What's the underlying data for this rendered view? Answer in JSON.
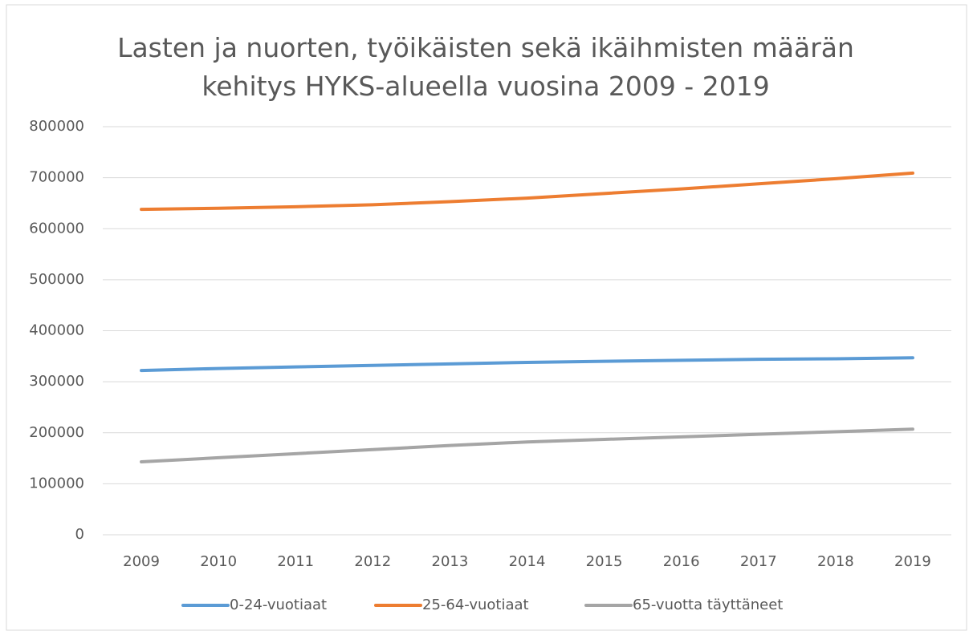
{
  "chart_data": {
    "type": "line",
    "title": "Lasten ja nuorten, työikäisten sekä ikäihmisten määrän kehitys HYKS-alueella vuosina 2009 - 2019",
    "categories": [
      "2009",
      "2010",
      "2011",
      "2012",
      "2013",
      "2014",
      "2015",
      "2016",
      "2017",
      "2018",
      "2019"
    ],
    "series": [
      {
        "name": "0-24-vuotiaat",
        "color": "#5b9bd5",
        "values": [
          322000,
          326000,
          329000,
          332000,
          335000,
          338000,
          340000,
          342000,
          344000,
          345000,
          347000
        ]
      },
      {
        "name": "25-64-vuotiaat",
        "color": "#ed7d31",
        "values": [
          638000,
          640000,
          643000,
          647000,
          653000,
          660000,
          669000,
          678000,
          688000,
          698000,
          709000
        ]
      },
      {
        "name": "65-vuotta täyttäneet",
        "color": "#a5a5a5",
        "values": [
          143000,
          151000,
          159000,
          167000,
          175000,
          182000,
          187000,
          192000,
          197000,
          202000,
          207000
        ]
      }
    ],
    "ylim": [
      0,
      800000
    ],
    "yticks": [
      0,
      100000,
      200000,
      300000,
      400000,
      500000,
      600000,
      700000,
      800000
    ],
    "grid": true,
    "legend": "bottom"
  }
}
